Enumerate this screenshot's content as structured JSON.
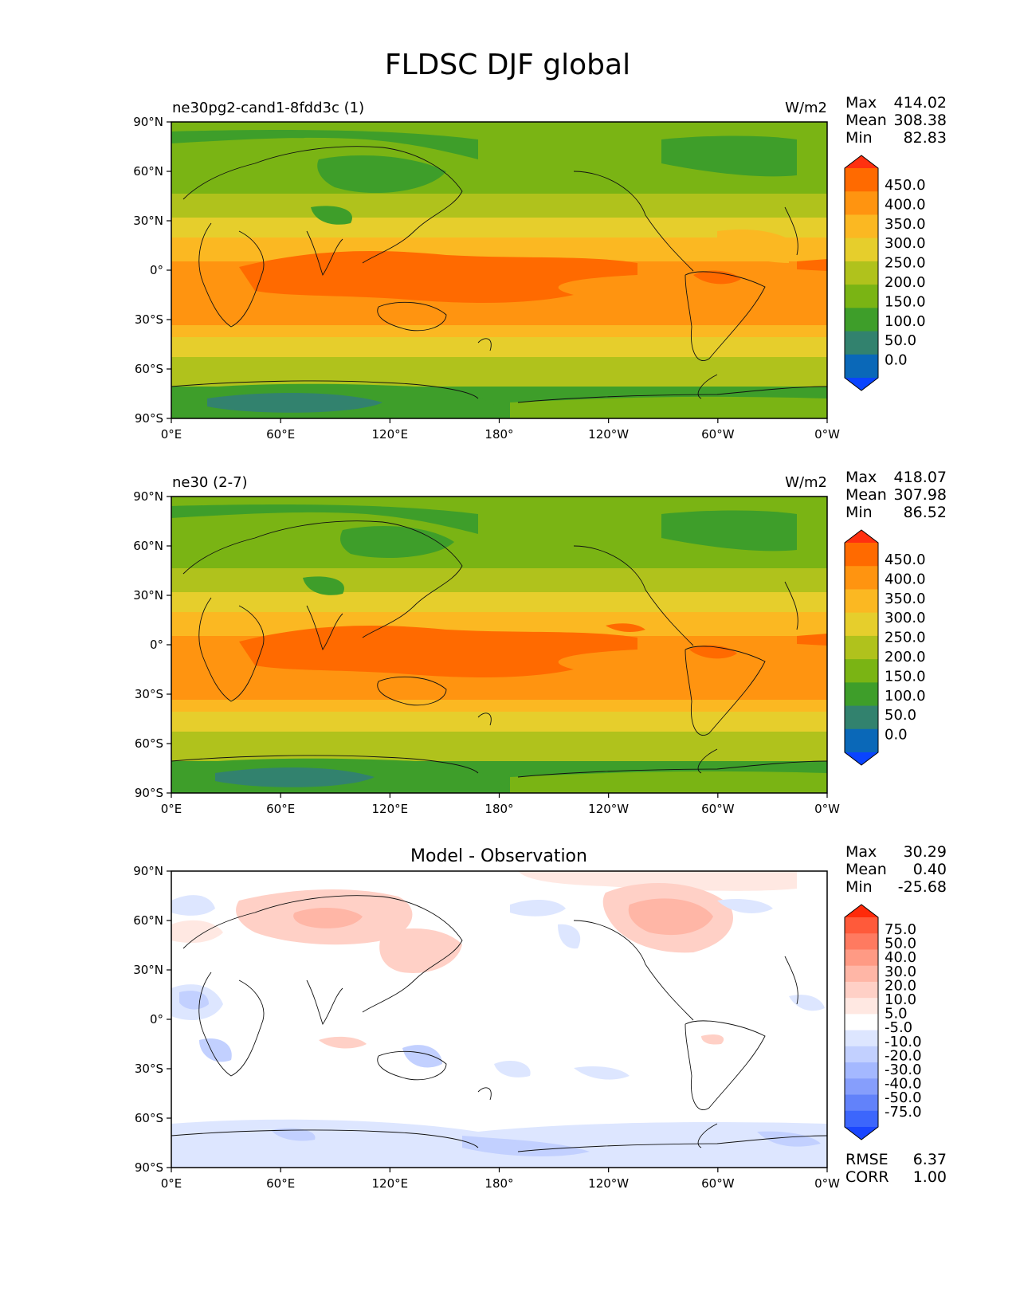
{
  "figure": {
    "title": "FLDSC DJF global"
  },
  "x_ticks": [
    "0°E",
    "60°E",
    "120°E",
    "180°",
    "120°W",
    "60°W",
    "0°W"
  ],
  "y_ticks": [
    "90°N",
    "60°N",
    "30°N",
    "0°",
    "30°S",
    "60°S",
    "90°S"
  ],
  "panels": [
    {
      "left_title": "ne30pg2-cand1-8fdd3c (1)",
      "center_title": "",
      "units": "W/m2",
      "stats": {
        "max_label": "Max",
        "max": "414.02",
        "mean_label": "Mean",
        "mean": "308.38",
        "min_label": "Min",
        "min": "82.83"
      },
      "colorbar": {
        "labels": [
          "450.0",
          "400.0",
          "350.0",
          "300.0",
          "250.0",
          "200.0",
          "150.0",
          "100.0",
          "50.0",
          "0.0"
        ],
        "colors": [
          "#ff3010",
          "#ff6a00",
          "#ff9410",
          "#fbb822",
          "#e6ce2c",
          "#b0c21c",
          "#7ab414",
          "#3e9e2a",
          "#32826e",
          "#0a68b8",
          "#0a44ff"
        ]
      }
    },
    {
      "left_title": "ne30 (2-7)",
      "center_title": "",
      "units": "W/m2",
      "stats": {
        "max_label": "Max",
        "max": "418.07",
        "mean_label": "Mean",
        "mean": "307.98",
        "min_label": "Min",
        "min": "86.52"
      },
      "colorbar": {
        "labels": [
          "450.0",
          "400.0",
          "350.0",
          "300.0",
          "250.0",
          "200.0",
          "150.0",
          "100.0",
          "50.0",
          "0.0"
        ],
        "colors": [
          "#ff3010",
          "#ff6a00",
          "#ff9410",
          "#fbb822",
          "#e6ce2c",
          "#b0c21c",
          "#7ab414",
          "#3e9e2a",
          "#32826e",
          "#0a68b8",
          "#0a44ff"
        ]
      }
    },
    {
      "left_title": "",
      "center_title": "Model - Observation",
      "units": "",
      "stats": {
        "max_label": "Max",
        "max": "30.29",
        "mean_label": "Mean",
        "mean": "0.40",
        "min_label": "Min",
        "min": "-25.68"
      },
      "colorbar": {
        "labels": [
          "75.0",
          "50.0",
          "40.0",
          "30.0",
          "20.0",
          "10.0",
          "5.0",
          "-5.0",
          "-10.0",
          "-20.0",
          "-30.0",
          "-40.0",
          "-50.0",
          "-75.0"
        ],
        "colors": [
          "#ff2a0a",
          "#ff5a3a",
          "#ff7a60",
          "#ff9a84",
          "#ffb6a6",
          "#ffd0c6",
          "#ffe8e2",
          "#ffffff",
          "#dde6ff",
          "#c2d0ff",
          "#a4b8ff",
          "#869efc",
          "#6282fa",
          "#3c66fc",
          "#1a46ff"
        ]
      },
      "extra_stats": {
        "rmse_label": "RMSE",
        "rmse": "6.37",
        "corr_label": "CORR",
        "corr": "1.00"
      }
    }
  ]
}
